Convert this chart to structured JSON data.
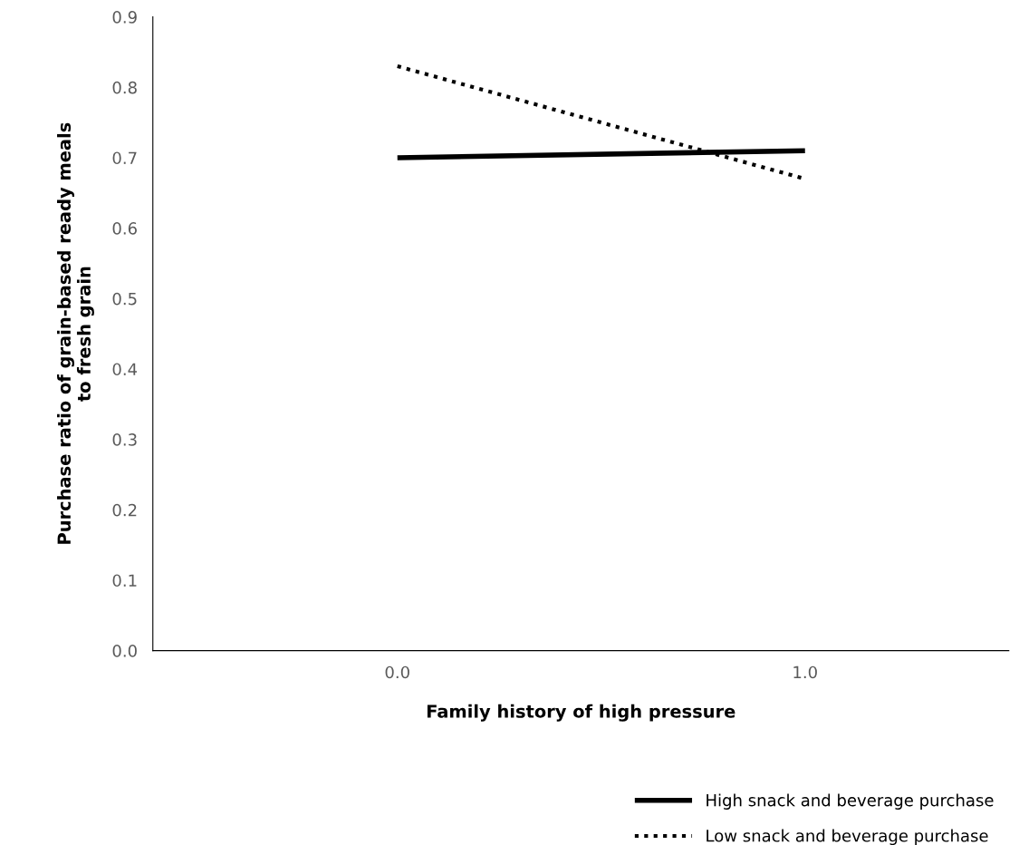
{
  "chart_data": {
    "type": "line",
    "xlabel": "Family history of high pressure",
    "ylabel": "Purchase ratio of grain-based ready meals\nto fresh grain",
    "categories": [
      "0.0",
      "1.0"
    ],
    "series": [
      {
        "name": "High snack and beverage purchase",
        "color": "#000000",
        "values": [
          0.7,
          0.71
        ],
        "line_style": "solid"
      },
      {
        "name": "Low snack and beverage purchase",
        "color": "#000000",
        "values": [
          0.83,
          0.67
        ],
        "line_style": "dotted"
      }
    ],
    "ylim": [
      0,
      0.9
    ],
    "yticks": [
      {
        "value": 0,
        "label": "0.0"
      },
      {
        "value": 0.1,
        "label": "0.1"
      },
      {
        "value": 0.2,
        "label": "0.2"
      },
      {
        "value": 0.3,
        "label": "0.3"
      },
      {
        "value": 0.4,
        "label": "0.4"
      },
      {
        "value": 0.5,
        "label": "0.5"
      },
      {
        "value": 0.6,
        "label": "0.6"
      },
      {
        "value": 0.7,
        "label": "0.7"
      },
      {
        "value": 0.8,
        "label": "0.8"
      },
      {
        "value": 0.9,
        "label": "0.9"
      }
    ],
    "grid": false,
    "legend": "bottom right",
    "marker": "none"
  }
}
